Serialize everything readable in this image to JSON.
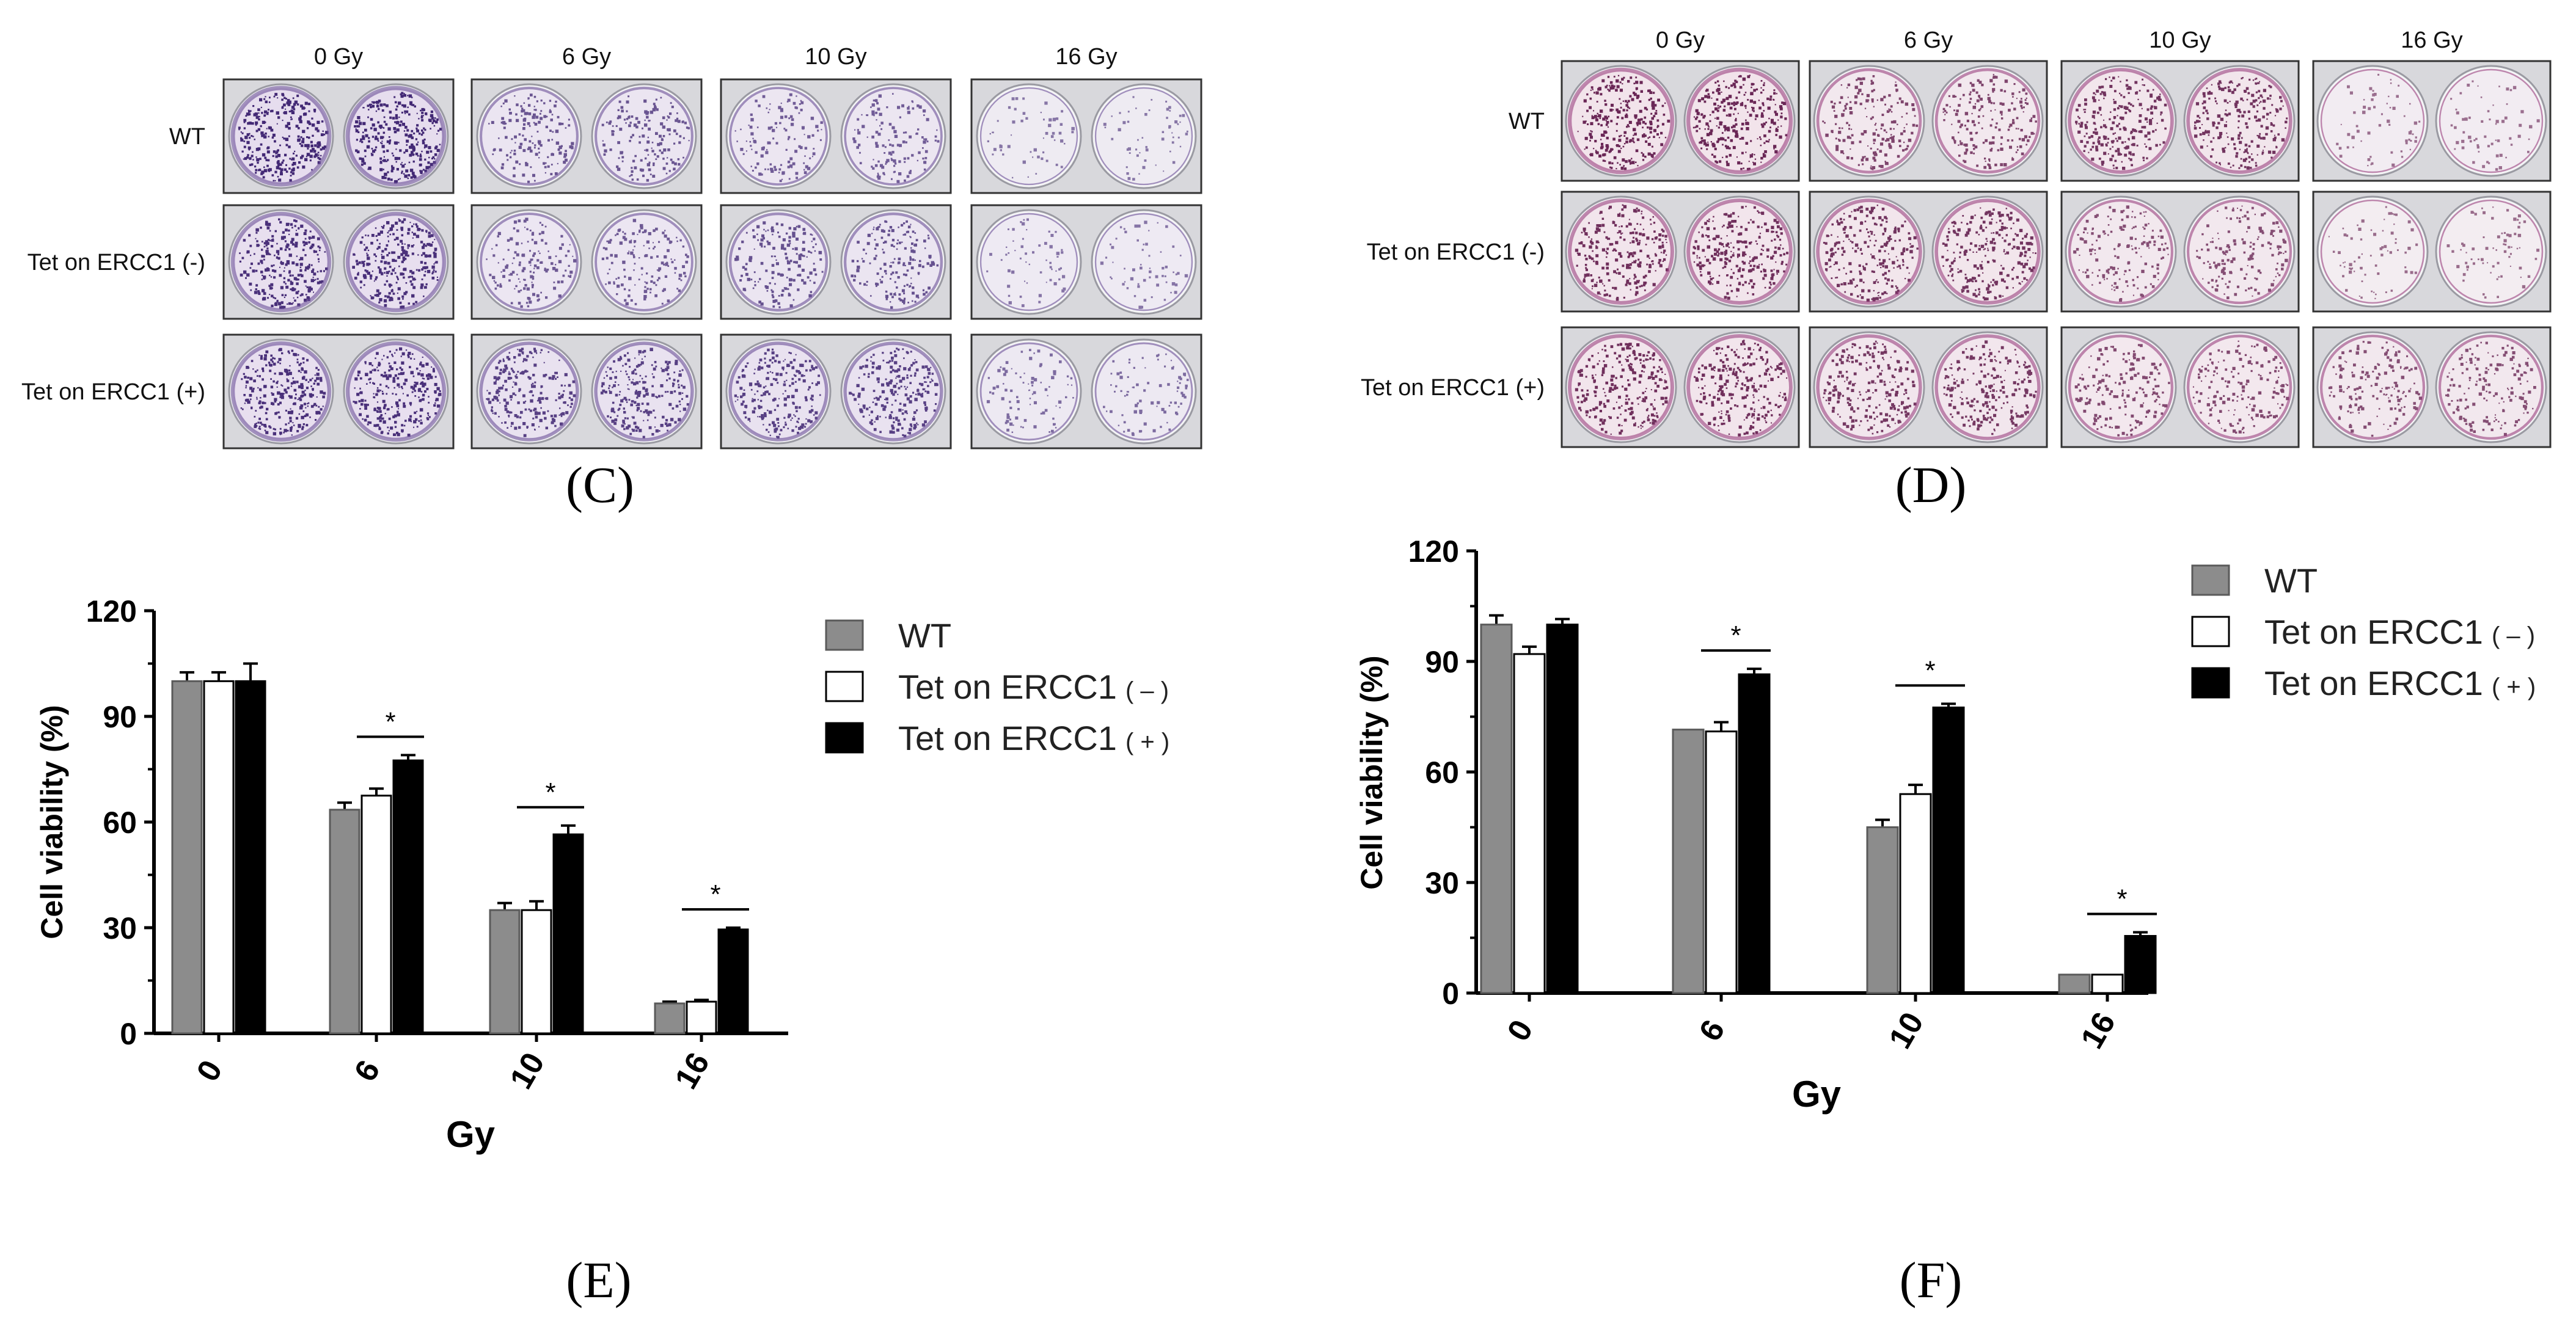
{
  "panels": {
    "C": {
      "label": "(C)",
      "columns": [
        "0 Gy",
        "6 Gy",
        "10 Gy",
        "16 Gy"
      ],
      "rows": [
        "WT",
        "Tet on ERCC1 (-)",
        "Tet on ERCC1 (+)"
      ],
      "stain": {
        "edge": "#6a4f98",
        "bg": "#e6ddee",
        "dot": "#3a1f6e"
      },
      "density": [
        [
          1.0,
          0.45,
          0.35,
          0.06
        ],
        [
          0.9,
          0.4,
          0.5,
          0.08
        ],
        [
          0.9,
          0.7,
          0.7,
          0.18
        ]
      ]
    },
    "D": {
      "label": "(D)",
      "columns": [
        "0 Gy",
        "6 Gy",
        "10 Gy",
        "16 Gy"
      ],
      "rows": [
        "WT",
        "Tet on ERCC1 (-)",
        "Tet on ERCC1 (+)"
      ],
      "stain": {
        "edge": "#9a3f7e",
        "bg": "#f1e2ea",
        "dot": "#5c1446"
      },
      "density": [
        [
          0.9,
          0.55,
          0.75,
          0.08
        ],
        [
          0.8,
          0.75,
          0.45,
          0.12
        ],
        [
          0.8,
          0.7,
          0.5,
          0.45
        ]
      ]
    }
  },
  "legend_items": {
    "wt": "WT",
    "minus": "Tet on ERCC1",
    "minus_sign": "( – )",
    "plus": "Tet on ERCC1",
    "plus_sign": "( + )"
  },
  "colors": {
    "wt": "#8c8c8c",
    "minus": "#ffffff",
    "plus": "#000000",
    "axis": "#000000"
  },
  "chart_data": [
    {
      "type": "bar",
      "panel": "(E)",
      "title": "",
      "xlabel": "Gy",
      "ylabel": "Cell viability (%)",
      "categories": [
        "0",
        "6",
        "10",
        "16"
      ],
      "ylim": [
        0,
        120
      ],
      "yticks": [
        "0",
        "30",
        "60",
        "90",
        "120"
      ],
      "series": [
        {
          "name": "WT",
          "values": [
            100,
            63.5,
            35,
            8.5
          ],
          "errors": [
            2.5,
            2,
            2,
            0.5
          ]
        },
        {
          "name": "Tet on ERCC1 ( – )",
          "values": [
            100,
            67.5,
            35,
            9
          ],
          "errors": [
            2.5,
            2,
            2.5,
            0.5
          ]
        },
        {
          "name": "Tet on ERCC1 ( + )",
          "values": [
            100,
            77.5,
            56.5,
            29.5
          ],
          "errors": [
            5,
            1.5,
            2.5,
            0.5
          ]
        }
      ],
      "significance": [
        {
          "category": "6",
          "label": "*"
        },
        {
          "category": "10",
          "label": "*"
        },
        {
          "category": "16",
          "label": "*"
        }
      ],
      "legend_position": "top-right"
    },
    {
      "type": "bar",
      "panel": "(F)",
      "title": "",
      "xlabel": "Gy",
      "ylabel": "Cell viability (%)",
      "categories": [
        "0",
        "6",
        "10",
        "16"
      ],
      "ylim": [
        0,
        120
      ],
      "yticks": [
        "0",
        "30",
        "60",
        "90",
        "120"
      ],
      "series": [
        {
          "name": "WT",
          "values": [
            100,
            71.5,
            45,
            5
          ],
          "errors": [
            2.5,
            0,
            2,
            0
          ]
        },
        {
          "name": "Tet on ERCC1 ( – )",
          "values": [
            92,
            71,
            54,
            5
          ],
          "errors": [
            2,
            2.5,
            2.5,
            0
          ]
        },
        {
          "name": "Tet on ERCC1 ( + )",
          "values": [
            100,
            86.5,
            77.5,
            15.5
          ],
          "errors": [
            1.5,
            1.5,
            1,
            1
          ]
        }
      ],
      "significance": [
        {
          "category": "6",
          "label": "*"
        },
        {
          "category": "10",
          "label": "*"
        },
        {
          "category": "16",
          "label": "*"
        }
      ],
      "legend_position": "top-right"
    }
  ]
}
